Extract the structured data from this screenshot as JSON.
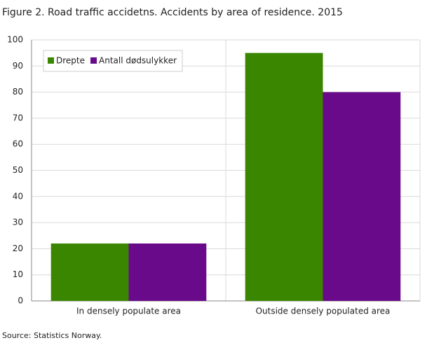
{
  "chart_data": {
    "type": "bar",
    "title": "Figure 2. Road traffic accidetns. Accidents by area of residence. 2015",
    "source": "Source: Statistics Norway.",
    "categories": [
      "In densely populate area",
      "Outside densely populated area"
    ],
    "series": [
      {
        "name": "Drepte",
        "color": "#3a8600",
        "values": [
          22,
          95
        ]
      },
      {
        "name": "Antall dødsulykker",
        "color": "#690a8a",
        "values": [
          22,
          80
        ]
      }
    ],
    "ylim": [
      0,
      100
    ],
    "yticks": [
      0,
      10,
      20,
      30,
      40,
      50,
      60,
      70,
      80,
      90,
      100
    ],
    "grid": true,
    "legend": "top-left"
  }
}
